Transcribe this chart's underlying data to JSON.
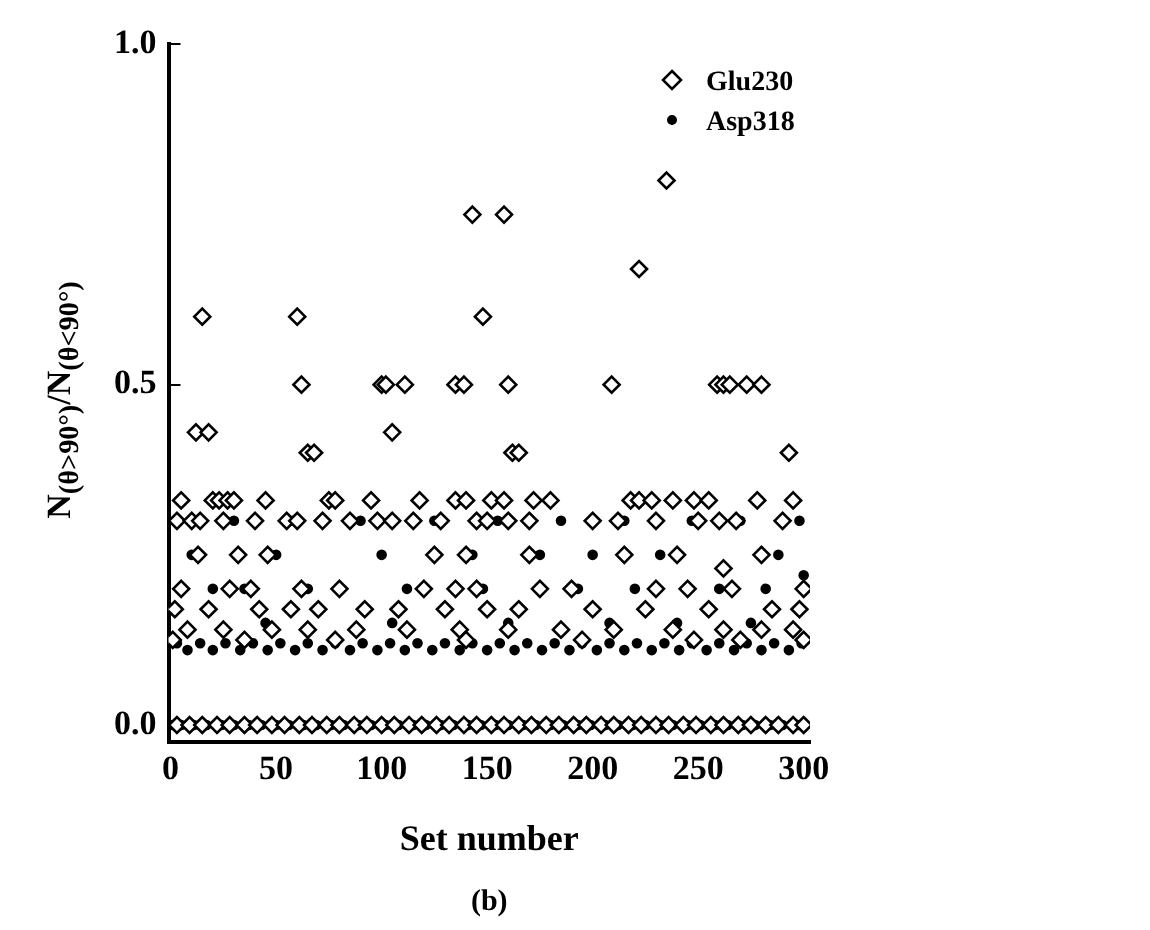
{
  "chart_data": {
    "type": "scatter",
    "xlabel": "Set number",
    "ylabel": "N$_{(θ>90°)}$/N$_{(θ<90°)}$",
    "annotations": [
      "(b)"
    ],
    "xlim": [
      -1,
      303
    ],
    "xticks": [
      0,
      50,
      100,
      150,
      200,
      250,
      300
    ],
    "ylim": [
      -0.025,
      1.0
    ],
    "yticks": [
      {
        "value": 0,
        "label": "0.0"
      },
      {
        "value": 0.5,
        "label": "0.5"
      },
      {
        "value": 1,
        "label": "1.0"
      }
    ],
    "grid": false,
    "legend": "top right",
    "series": [
      {
        "name": "Glu230",
        "color": "#000000",
        "marker": "diamond",
        "x": [
          12,
          15,
          18,
          60,
          62,
          65,
          68,
          100,
          102,
          105,
          111,
          135,
          139,
          143,
          148,
          158,
          160,
          162,
          165,
          209,
          222,
          235,
          259,
          262,
          265,
          273,
          280,
          293,
          5,
          20,
          23,
          27,
          30,
          45,
          75,
          78,
          95,
          118,
          135,
          140,
          152,
          158,
          172,
          180,
          218,
          222,
          228,
          238,
          248,
          255,
          278,
          295,
          3,
          10,
          14,
          25,
          40,
          55,
          60,
          72,
          85,
          98,
          105,
          115,
          128,
          145,
          150,
          160,
          170,
          200,
          212,
          230,
          250,
          260,
          268,
          290,
          13,
          32,
          46,
          125,
          140,
          170,
          215,
          240,
          262,
          280,
          5,
          28,
          38,
          62,
          80,
          120,
          135,
          145,
          175,
          190,
          230,
          245,
          266,
          300,
          2,
          18,
          42,
          57,
          70,
          92,
          108,
          130,
          150,
          165,
          200,
          225,
          255,
          285,
          298,
          8,
          25,
          48,
          65,
          88,
          112,
          137,
          160,
          185,
          210,
          238,
          262,
          280,
          295,
          1,
          35,
          78,
          140,
          195,
          248,
          270,
          300,
          3,
          9,
          15,
          22,
          28,
          35,
          41,
          48,
          54,
          61,
          67,
          74,
          80,
          87,
          93,
          100,
          106,
          113,
          119,
          126,
          132,
          139,
          145,
          152,
          158,
          165,
          171,
          178,
          184,
          191,
          197,
          204,
          210,
          217,
          223,
          230,
          236,
          243,
          249,
          256,
          262,
          269,
          275,
          282,
          288,
          295,
          300
        ],
        "values": [
          0.43,
          0.6,
          0.43,
          0.6,
          0.5,
          0.4,
          0.4,
          0.5,
          0.5,
          0.43,
          0.5,
          0.5,
          0.5,
          0.75,
          0.6,
          0.75,
          0.5,
          0.4,
          0.4,
          0.5,
          0.67,
          0.8,
          0.5,
          0.5,
          0.5,
          0.5,
          0.5,
          0.4,
          0.33,
          0.33,
          0.33,
          0.33,
          0.33,
          0.33,
          0.33,
          0.33,
          0.33,
          0.33,
          0.33,
          0.33,
          0.33,
          0.33,
          0.33,
          0.33,
          0.33,
          0.33,
          0.33,
          0.33,
          0.33,
          0.33,
          0.33,
          0.33,
          0.3,
          0.3,
          0.3,
          0.3,
          0.3,
          0.3,
          0.3,
          0.3,
          0.3,
          0.3,
          0.3,
          0.3,
          0.3,
          0.3,
          0.3,
          0.3,
          0.3,
          0.3,
          0.3,
          0.3,
          0.3,
          0.3,
          0.3,
          0.3,
          0.25,
          0.25,
          0.25,
          0.25,
          0.25,
          0.25,
          0.25,
          0.25,
          0.23,
          0.25,
          0.2,
          0.2,
          0.2,
          0.2,
          0.2,
          0.2,
          0.2,
          0.2,
          0.2,
          0.2,
          0.2,
          0.2,
          0.2,
          0.2,
          0.17,
          0.17,
          0.17,
          0.17,
          0.17,
          0.17,
          0.17,
          0.17,
          0.17,
          0.17,
          0.17,
          0.17,
          0.17,
          0.17,
          0.17,
          0.14,
          0.14,
          0.14,
          0.14,
          0.14,
          0.14,
          0.14,
          0.14,
          0.14,
          0.14,
          0.14,
          0.14,
          0.14,
          0.14,
          0.125,
          0.125,
          0.125,
          0.125,
          0.125,
          0.125,
          0.125,
          0.125,
          0,
          0,
          0,
          0,
          0,
          0,
          0,
          0,
          0,
          0,
          0,
          0,
          0,
          0,
          0,
          0,
          0,
          0,
          0,
          0,
          0,
          0,
          0,
          0,
          0,
          0,
          0,
          0,
          0,
          0,
          0,
          0,
          0,
          0,
          0,
          0,
          0,
          0,
          0,
          0,
          0,
          0,
          0,
          0,
          0,
          0,
          0
        ]
      },
      {
        "name": "Asp318",
        "color": "#000000",
        "marker": "circle",
        "x": [
          30,
          58,
          90,
          125,
          155,
          185,
          215,
          247,
          270,
          298,
          10,
          50,
          100,
          143,
          175,
          200,
          232,
          288,
          20,
          35,
          65,
          112,
          148,
          193,
          220,
          260,
          282,
          45,
          105,
          160,
          208,
          240,
          275,
          300,
          3,
          8,
          14,
          20,
          26,
          33,
          39,
          46,
          52,
          59,
          65,
          72,
          78,
          85,
          91,
          98,
          104,
          111,
          117,
          124,
          130,
          137,
          143,
          150,
          156,
          163,
          169,
          176,
          182,
          189,
          195,
          202,
          208,
          215,
          221,
          228,
          234,
          241,
          247,
          254,
          260,
          267,
          273,
          280,
          286,
          293,
          299,
          1,
          5,
          11,
          17,
          24,
          30,
          37,
          43,
          50,
          56,
          63,
          69,
          76,
          82,
          89,
          95,
          102,
          108,
          115,
          121,
          128,
          134,
          141,
          147,
          154,
          160,
          167,
          173,
          180,
          186,
          193,
          199,
          206,
          212,
          219,
          225,
          232,
          238,
          245,
          251,
          258,
          264,
          271,
          277,
          284,
          290,
          297
        ],
        "values": [
          0.3,
          0.3,
          0.3,
          0.3,
          0.3,
          0.3,
          0.3,
          0.3,
          0.3,
          0.3,
          0.25,
          0.25,
          0.25,
          0.25,
          0.25,
          0.25,
          0.25,
          0.25,
          0.2,
          0.2,
          0.2,
          0.2,
          0.2,
          0.2,
          0.2,
          0.2,
          0.2,
          0.15,
          0.15,
          0.15,
          0.15,
          0.15,
          0.15,
          0.22,
          0.12,
          0.11,
          0.12,
          0.11,
          0.12,
          0.11,
          0.12,
          0.11,
          0.12,
          0.11,
          0.12,
          0.11,
          0.12,
          0.11,
          0.12,
          0.11,
          0.12,
          0.11,
          0.12,
          0.11,
          0.12,
          0.11,
          0.12,
          0.11,
          0.12,
          0.11,
          0.12,
          0.11,
          0.12,
          0.11,
          0.12,
          0.11,
          0.12,
          0.11,
          0.12,
          0.11,
          0.12,
          0.11,
          0.12,
          0.11,
          0.12,
          0.11,
          0.12,
          0.11,
          0.12,
          0.11,
          0.12,
          0,
          0,
          0,
          0,
          0,
          0,
          0,
          0,
          0,
          0,
          0,
          0,
          0,
          0,
          0,
          0,
          0,
          0,
          0,
          0,
          0,
          0,
          0,
          0,
          0,
          0,
          0,
          0,
          0,
          0,
          0,
          0,
          0,
          0,
          0,
          0,
          0,
          0,
          0,
          0,
          0,
          0,
          0,
          0,
          0,
          0,
          0
        ]
      }
    ]
  }
}
